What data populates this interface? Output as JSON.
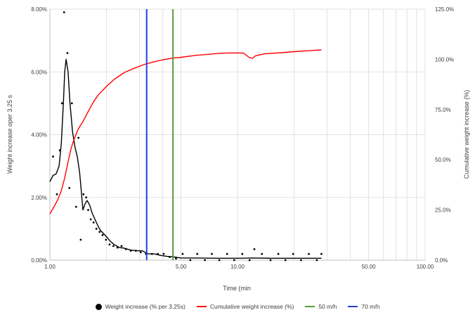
{
  "chart_data": {
    "type": "scatter",
    "x_scale": "log",
    "xlim": [
      1,
      100
    ],
    "ylim_left": [
      0,
      8
    ],
    "ylim_right": [
      0,
      125
    ],
    "xlabel": "Time (min",
    "ylabel_left": "Weight increase oper 3.25 s",
    "ylabel_right": "Cumulative weight increase (%)",
    "x_ticks": [
      {
        "value": 1,
        "label": "1.00"
      },
      {
        "value": 5,
        "label": "5.00"
      },
      {
        "value": 10,
        "label": "10.00"
      },
      {
        "value": 50,
        "label": "50.00"
      },
      {
        "value": 100,
        "label": "100.00"
      }
    ],
    "x_minor_gridlines": [
      2,
      3,
      4,
      20,
      30,
      40,
      60,
      70,
      80,
      90
    ],
    "y_left_ticks": [
      {
        "value": 0,
        "label": "0.00%"
      },
      {
        "value": 2,
        "label": "2.00%"
      },
      {
        "value": 4,
        "label": "4.00%"
      },
      {
        "value": 6,
        "label": "6.00%"
      },
      {
        "value": 8,
        "label": "8.00%"
      }
    ],
    "y_right_ticks": [
      {
        "value": 0,
        "label": "0.0%"
      },
      {
        "value": 25,
        "label": "25.0%"
      },
      {
        "value": 50,
        "label": "50.0%"
      },
      {
        "value": 75,
        "label": "75.0%"
      },
      {
        "value": 100,
        "label": "100.0%"
      },
      {
        "value": 125,
        "label": "125.0%"
      }
    ],
    "grid": true,
    "legend_position": "bottom",
    "legend": [
      {
        "label": "Weight increase (% per 3.25s)",
        "marker": "dot",
        "color": "#000000"
      },
      {
        "label": "Cumulative weight increase (%)",
        "marker": "line",
        "color": "#ff0000"
      },
      {
        "label": "50 m/h",
        "marker": "line",
        "color": "#5a9a3a"
      },
      {
        "label": "70 m/h",
        "marker": "line",
        "color": "#1f3fe0"
      }
    ],
    "series": [
      {
        "kind": "scatter",
        "axis": "left",
        "color": "#000000",
        "points": [
          [
            1.04,
            3.3
          ],
          [
            1.09,
            2.1
          ],
          [
            1.13,
            3.5
          ],
          [
            1.16,
            5.0
          ],
          [
            1.19,
            7.9
          ],
          [
            1.24,
            6.6
          ],
          [
            1.27,
            2.3
          ],
          [
            1.31,
            5.0
          ],
          [
            1.38,
            1.7
          ],
          [
            1.42,
            3.9
          ],
          [
            1.46,
            0.65
          ],
          [
            1.51,
            2.1
          ],
          [
            1.56,
            2.0
          ],
          [
            1.6,
            1.6
          ],
          [
            1.65,
            1.3
          ],
          [
            1.71,
            1.2
          ],
          [
            1.77,
            1.0
          ],
          [
            1.84,
            0.9
          ],
          [
            1.91,
            0.8
          ],
          [
            1.99,
            0.65
          ],
          [
            2.08,
            0.5
          ],
          [
            2.18,
            0.45
          ],
          [
            2.29,
            0.4
          ],
          [
            2.41,
            0.45
          ],
          [
            2.54,
            0.35
          ],
          [
            2.7,
            0.3
          ],
          [
            2.87,
            0.3
          ],
          [
            3.05,
            0.25
          ],
          [
            3.25,
            0.2
          ],
          [
            3.5,
            0.2
          ],
          [
            3.76,
            0.2
          ],
          [
            4.04,
            0.2
          ],
          [
            4.35,
            0.1
          ],
          [
            4.7,
            0.05
          ],
          [
            5.1,
            0.2
          ],
          [
            5.6,
            0.0
          ],
          [
            6.1,
            0.2
          ],
          [
            6.7,
            0.0
          ],
          [
            7.3,
            0.2
          ],
          [
            8.0,
            0.0
          ],
          [
            8.8,
            0.2
          ],
          [
            9.6,
            0.0
          ],
          [
            10.6,
            0.2
          ],
          [
            11.6,
            0.0
          ],
          [
            12.3,
            0.35
          ],
          [
            13.5,
            0.2
          ],
          [
            15.0,
            0.0
          ],
          [
            16.5,
            0.2
          ],
          [
            18.0,
            0.0
          ],
          [
            19.8,
            0.2
          ],
          [
            21.8,
            0.0
          ],
          [
            24.0,
            0.2
          ],
          [
            26.5,
            0.0
          ],
          [
            28.0,
            0.2
          ]
        ]
      },
      {
        "kind": "line",
        "axis": "left",
        "color": "#000000",
        "points": [
          [
            1.0,
            2.5
          ],
          [
            1.04,
            2.7
          ],
          [
            1.08,
            2.75
          ],
          [
            1.12,
            3.0
          ],
          [
            1.15,
            3.7
          ],
          [
            1.18,
            5.0
          ],
          [
            1.2,
            6.0
          ],
          [
            1.22,
            6.4
          ],
          [
            1.25,
            6.0
          ],
          [
            1.28,
            5.0
          ],
          [
            1.32,
            4.1
          ],
          [
            1.36,
            3.6
          ],
          [
            1.4,
            3.3
          ],
          [
            1.44,
            2.8
          ],
          [
            1.47,
            2.2
          ],
          [
            1.5,
            1.6
          ],
          [
            1.54,
            1.8
          ],
          [
            1.58,
            1.9
          ],
          [
            1.63,
            1.75
          ],
          [
            1.68,
            1.5
          ],
          [
            1.74,
            1.3
          ],
          [
            1.8,
            1.1
          ],
          [
            1.86,
            0.95
          ],
          [
            1.93,
            0.85
          ],
          [
            2.0,
            0.75
          ],
          [
            2.1,
            0.6
          ],
          [
            2.2,
            0.5
          ],
          [
            2.35,
            0.4
          ],
          [
            2.5,
            0.38
          ],
          [
            2.7,
            0.32
          ],
          [
            2.9,
            0.3
          ],
          [
            3.1,
            0.3
          ],
          [
            3.35,
            0.2
          ],
          [
            3.6,
            0.2
          ],
          [
            3.9,
            0.15
          ],
          [
            4.2,
            0.12
          ],
          [
            4.6,
            0.1
          ],
          [
            5.0,
            0.07
          ],
          [
            6.0,
            0.07
          ],
          [
            8.0,
            0.06
          ],
          [
            10.0,
            0.06
          ],
          [
            12.0,
            0.07
          ],
          [
            15.0,
            0.06
          ],
          [
            20.0,
            0.06
          ],
          [
            28.0,
            0.06
          ]
        ]
      },
      {
        "kind": "line",
        "axis": "right",
        "color": "#ff0000",
        "points": [
          [
            1.0,
            23.0
          ],
          [
            1.05,
            26.5
          ],
          [
            1.1,
            30.0
          ],
          [
            1.15,
            34.5
          ],
          [
            1.2,
            41.0
          ],
          [
            1.25,
            49.0
          ],
          [
            1.3,
            56.0
          ],
          [
            1.35,
            60.5
          ],
          [
            1.42,
            65.5
          ],
          [
            1.5,
            69.0
          ],
          [
            1.6,
            74.0
          ],
          [
            1.7,
            78.5
          ],
          [
            1.8,
            82.0
          ],
          [
            2.0,
            86.5
          ],
          [
            2.2,
            90.0
          ],
          [
            2.5,
            93.5
          ],
          [
            2.8,
            95.5
          ],
          [
            3.2,
            97.5
          ],
          [
            3.6,
            98.8
          ],
          [
            4.0,
            99.8
          ],
          [
            4.5,
            100.6
          ],
          [
            5.0,
            101.0
          ],
          [
            6.0,
            102.0
          ],
          [
            7.0,
            102.5
          ],
          [
            8.0,
            103.0
          ],
          [
            9.0,
            103.2
          ],
          [
            10.0,
            103.2
          ],
          [
            10.8,
            103.1
          ],
          [
            11.5,
            101.0
          ],
          [
            12.0,
            100.5
          ],
          [
            12.5,
            101.8
          ],
          [
            14.0,
            102.8
          ],
          [
            17.0,
            103.3
          ],
          [
            20.0,
            103.8
          ],
          [
            24.0,
            104.3
          ],
          [
            28.0,
            104.7
          ]
        ]
      }
    ],
    "vertical_lines": [
      {
        "x": 3.28,
        "color": "#1f3fe0",
        "label": "70 m/h"
      },
      {
        "x": 4.53,
        "color": "#5a9a3a",
        "label": "50 m/h"
      }
    ]
  }
}
